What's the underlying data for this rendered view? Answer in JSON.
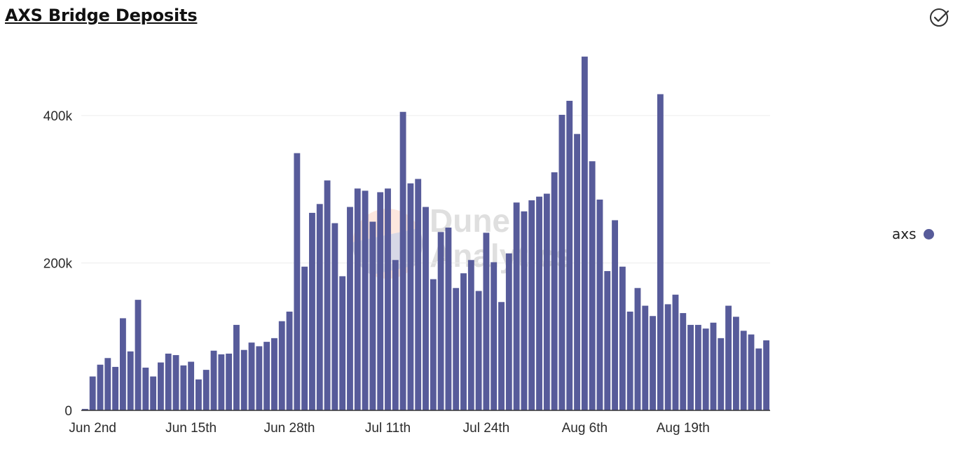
{
  "title": "AXS Bridge Deposits",
  "icons": {
    "check": "circle-check-icon"
  },
  "watermark": {
    "line1": "Dune",
    "line2": "Analytics"
  },
  "colors": {
    "bar": "#575b9a",
    "grid": "#ececec",
    "axis": "#333333",
    "text": "#2b2b2b"
  },
  "chart_data": {
    "type": "bar",
    "title": "AXS Bridge Deposits",
    "xlabel": "",
    "ylabel": "",
    "ylim": [
      0,
      480000
    ],
    "yticks": [
      0,
      200000,
      400000
    ],
    "ytick_labels": [
      "0",
      "200k",
      "400k"
    ],
    "xtick_labels": [
      {
        "index": 1,
        "label": "Jun 2nd"
      },
      {
        "index": 14,
        "label": "Jun 15th"
      },
      {
        "index": 27,
        "label": "Jun 28th"
      },
      {
        "index": 40,
        "label": "Jul 11th"
      },
      {
        "index": 53,
        "label": "Jul 24th"
      },
      {
        "index": 66,
        "label": "Aug 6th"
      },
      {
        "index": 79,
        "label": "Aug 19th"
      }
    ],
    "series": [
      {
        "name": "axs",
        "values": [
          2000,
          46000,
          62000,
          71000,
          59000,
          125000,
          80000,
          150000,
          58000,
          46000,
          65000,
          77000,
          75000,
          61000,
          66000,
          42000,
          55000,
          81000,
          76000,
          77000,
          116000,
          82000,
          92000,
          87000,
          93000,
          98000,
          121000,
          134000,
          349000,
          195000,
          268000,
          280000,
          312000,
          254000,
          182000,
          276000,
          301000,
          298000,
          256000,
          296000,
          301000,
          204000,
          405000,
          308000,
          314000,
          276000,
          178000,
          242000,
          248000,
          166000,
          186000,
          204000,
          162000,
          241000,
          201000,
          147000,
          213000,
          282000,
          270000,
          285000,
          290000,
          294000,
          323000,
          401000,
          420000,
          375000,
          480000,
          338000,
          286000,
          189000,
          258000,
          195000,
          134000,
          166000,
          142000,
          128000,
          429000,
          144000,
          157000,
          132000,
          116000,
          116000,
          111000,
          119000,
          98000,
          142000,
          127000,
          108000,
          103000,
          84000,
          95000
        ]
      }
    ],
    "legend": {
      "position": "right",
      "entries": [
        "axs"
      ]
    }
  }
}
